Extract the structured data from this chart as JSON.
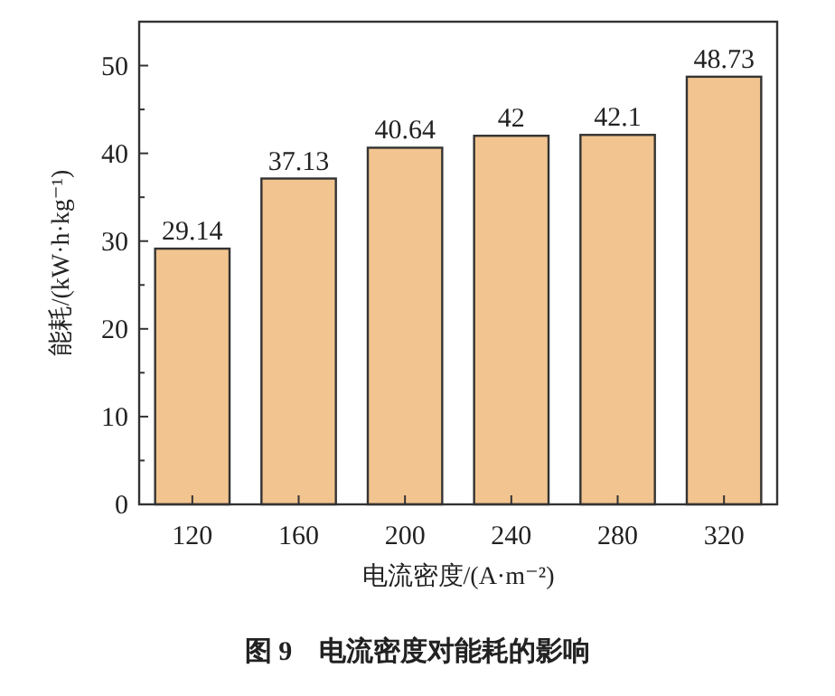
{
  "chart_data": {
    "type": "bar",
    "xlabel": "电流密度/(A·m⁻²)",
    "ylabel": "能耗/(kW·h·kg⁻¹)",
    "categories": [
      "120",
      "160",
      "200",
      "240",
      "280",
      "320"
    ],
    "values": [
      29.14,
      37.13,
      40.64,
      42,
      42.1,
      48.73
    ],
    "color": "#f2c48f",
    "data_labels": true,
    "ylim": [
      0,
      55
    ],
    "yticks": [
      0,
      {
        "value": 5,
        "label": null
      },
      10,
      {
        "value": 15,
        "label": null
      },
      20,
      {
        "value": 25,
        "label": null
      },
      30,
      {
        "value": 35,
        "label": null
      },
      40,
      {
        "value": 45,
        "label": null
      },
      50
    ],
    "annotations": [
      "图 9　电流密度对能耗的影响"
    ]
  }
}
